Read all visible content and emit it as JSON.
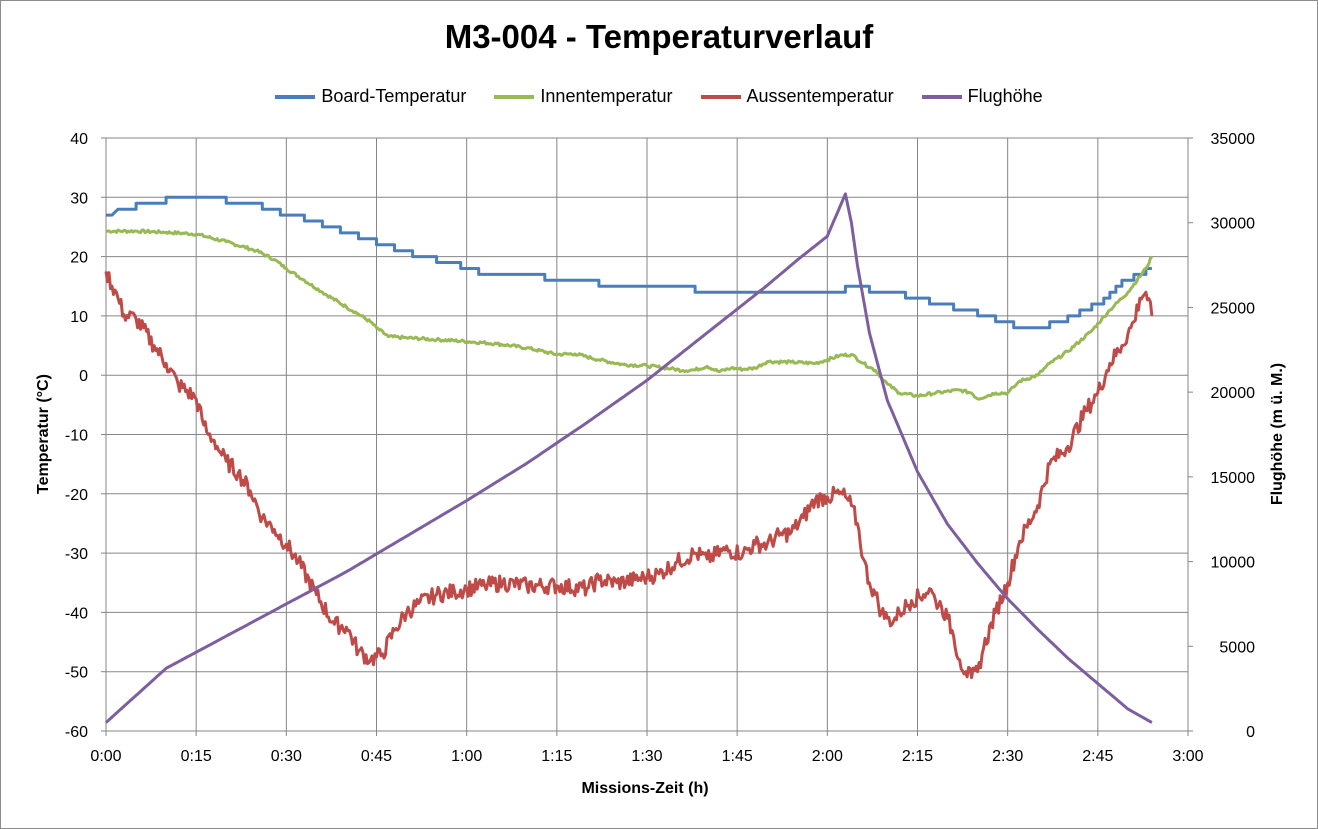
{
  "chart_data": {
    "type": "line",
    "title": "M3-004 - Temperaturverlauf",
    "xlabel": "Missions-Zeit (h)",
    "ylabel": "Temperatur (°C)",
    "y2label": "Flughöhe (m ü. M.)",
    "xlim": [
      0,
      180
    ],
    "ylim": [
      -60,
      40
    ],
    "y2lim": [
      0,
      35000
    ],
    "x_ticks": [
      "0:00",
      "0:15",
      "0:30",
      "0:45",
      "1:00",
      "1:15",
      "1:30",
      "1:45",
      "2:00",
      "2:15",
      "2:30",
      "2:45",
      "3:00"
    ],
    "y_ticks": [
      "40",
      "30",
      "20",
      "10",
      "0",
      "-10",
      "-20",
      "-30",
      "-40",
      "-50",
      "-60"
    ],
    "y2_ticks": [
      "35000",
      "30000",
      "25000",
      "20000",
      "15000",
      "10000",
      "5000",
      "0"
    ],
    "grid": true,
    "legend_position": "top",
    "x_unit_note": "minutes of mission time",
    "series": [
      {
        "name": "Board-Temperatur",
        "axis": "left",
        "color": "#4a7ebb",
        "step": true,
        "points": [
          [
            0,
            27
          ],
          [
            1,
            27
          ],
          [
            2,
            28
          ],
          [
            5,
            28
          ],
          [
            5,
            29
          ],
          [
            10,
            29
          ],
          [
            10,
            30
          ],
          [
            20,
            30
          ],
          [
            20,
            29
          ],
          [
            26,
            29
          ],
          [
            26,
            28
          ],
          [
            29,
            28
          ],
          [
            29,
            27
          ],
          [
            33,
            27
          ],
          [
            33,
            26
          ],
          [
            36,
            26
          ],
          [
            36,
            25
          ],
          [
            39,
            25
          ],
          [
            39,
            24
          ],
          [
            42,
            24
          ],
          [
            42,
            23
          ],
          [
            45,
            23
          ],
          [
            45,
            22
          ],
          [
            48,
            22
          ],
          [
            48,
            21
          ],
          [
            51,
            21
          ],
          [
            51,
            20
          ],
          [
            55,
            20
          ],
          [
            55,
            19
          ],
          [
            59,
            19
          ],
          [
            59,
            18
          ],
          [
            62,
            18
          ],
          [
            62,
            17
          ],
          [
            73,
            17
          ],
          [
            73,
            16
          ],
          [
            82,
            16
          ],
          [
            82,
            15
          ],
          [
            98,
            15
          ],
          [
            98,
            14
          ],
          [
            123,
            14
          ],
          [
            123,
            15
          ],
          [
            127,
            15
          ],
          [
            127,
            14
          ],
          [
            133,
            14
          ],
          [
            133,
            13
          ],
          [
            137,
            13
          ],
          [
            137,
            12
          ],
          [
            141,
            12
          ],
          [
            141,
            11
          ],
          [
            145,
            11
          ],
          [
            145,
            10
          ],
          [
            148,
            10
          ],
          [
            148,
            9
          ],
          [
            151,
            9
          ],
          [
            151,
            8
          ],
          [
            157,
            8
          ],
          [
            157,
            9
          ],
          [
            160,
            9
          ],
          [
            160,
            10
          ],
          [
            162,
            10
          ],
          [
            162,
            11
          ],
          [
            164,
            11
          ],
          [
            164,
            12
          ],
          [
            166,
            12
          ],
          [
            166,
            13
          ],
          [
            167,
            13
          ],
          [
            167,
            14
          ],
          [
            168,
            14
          ],
          [
            168,
            15
          ],
          [
            169,
            15
          ],
          [
            169,
            16
          ],
          [
            171,
            16
          ],
          [
            171,
            17
          ],
          [
            173,
            17
          ],
          [
            173,
            18
          ],
          [
            174,
            18
          ]
        ]
      },
      {
        "name": "Innentemperatur",
        "axis": "left",
        "color": "#98b954",
        "step": false,
        "points": [
          [
            0,
            24.3
          ],
          [
            5,
            24.3
          ],
          [
            10,
            24.1
          ],
          [
            15,
            23.8
          ],
          [
            20,
            22.5
          ],
          [
            25,
            21
          ],
          [
            28,
            19.5
          ],
          [
            30,
            18
          ],
          [
            33,
            16
          ],
          [
            36,
            14
          ],
          [
            40,
            11.5
          ],
          [
            42,
            10.3
          ],
          [
            44,
            9
          ],
          [
            45,
            8
          ],
          [
            47,
            6.5
          ],
          [
            50,
            6.3
          ],
          [
            55,
            6
          ],
          [
            60,
            5.7
          ],
          [
            65,
            5.3
          ],
          [
            70,
            4.6
          ],
          [
            75,
            3.5
          ],
          [
            78,
            3.6
          ],
          [
            82,
            2.6
          ],
          [
            86,
            1.8
          ],
          [
            90,
            1.6
          ],
          [
            94,
            1.1
          ],
          [
            96,
            0.8
          ],
          [
            98,
            0.9
          ],
          [
            100,
            1.5
          ],
          [
            102,
            0.6
          ],
          [
            104,
            1.2
          ],
          [
            106,
            1
          ],
          [
            108,
            1.2
          ],
          [
            110,
            2.3
          ],
          [
            114,
            2.2
          ],
          [
            118,
            2
          ],
          [
            120,
            2.6
          ],
          [
            122,
            3.3
          ],
          [
            124,
            3.5
          ],
          [
            126,
            2
          ],
          [
            128,
            0.8
          ],
          [
            130,
            -1.5
          ],
          [
            132,
            -3
          ],
          [
            135,
            -3.5
          ],
          [
            138,
            -3
          ],
          [
            142,
            -2.5
          ],
          [
            144,
            -3
          ],
          [
            145,
            -4
          ],
          [
            148,
            -3
          ],
          [
            150,
            -3
          ],
          [
            151,
            -2
          ],
          [
            152,
            -1
          ],
          [
            155,
            0
          ],
          [
            157,
            2
          ],
          [
            160,
            4
          ],
          [
            164,
            7.5
          ],
          [
            167,
            11
          ],
          [
            170,
            14
          ],
          [
            173,
            18
          ],
          [
            174,
            20
          ]
        ]
      },
      {
        "name": "Aussentemperatur",
        "axis": "left",
        "color": "#be4b48",
        "step": false,
        "points": [
          [
            0,
            17.5
          ],
          [
            2,
            13
          ],
          [
            3,
            10.2
          ],
          [
            5,
            9.5
          ],
          [
            8,
            5
          ],
          [
            10,
            2
          ],
          [
            12,
            -1.5
          ],
          [
            15,
            -4
          ],
          [
            16,
            -7.5
          ],
          [
            17,
            -10
          ],
          [
            18,
            -11
          ],
          [
            19,
            -13
          ],
          [
            20,
            -14.5
          ],
          [
            22,
            -16.5
          ],
          [
            24,
            -19.5
          ],
          [
            26,
            -24
          ],
          [
            28,
            -26
          ],
          [
            30,
            -28.5
          ],
          [
            32,
            -31.5
          ],
          [
            35,
            -37
          ],
          [
            38,
            -42
          ],
          [
            40,
            -42.5
          ],
          [
            42,
            -46.5
          ],
          [
            44,
            -48
          ],
          [
            46,
            -47
          ],
          [
            48,
            -43
          ],
          [
            50,
            -40
          ],
          [
            52,
            -38.5
          ],
          [
            55,
            -37
          ],
          [
            58,
            -36.5
          ],
          [
            60,
            -36
          ],
          [
            63,
            -35.5
          ],
          [
            66,
            -35
          ],
          [
            70,
            -35.5
          ],
          [
            75,
            -35.5
          ],
          [
            80,
            -36
          ],
          [
            82,
            -34.5
          ],
          [
            85,
            -35
          ],
          [
            88,
            -34.5
          ],
          [
            90,
            -34
          ],
          [
            92,
            -33.5
          ],
          [
            95,
            -31.5
          ],
          [
            98,
            -30
          ],
          [
            100,
            -31
          ],
          [
            103,
            -29.5
          ],
          [
            106,
            -30
          ],
          [
            108,
            -28.5
          ],
          [
            110,
            -28.5
          ],
          [
            112,
            -27
          ],
          [
            114,
            -26.5
          ],
          [
            116,
            -24
          ],
          [
            118,
            -21
          ],
          [
            120,
            -20.5
          ],
          [
            122,
            -20
          ],
          [
            123,
            -20.5
          ],
          [
            124,
            -22
          ],
          [
            125,
            -25
          ],
          [
            126,
            -31
          ],
          [
            127,
            -35
          ],
          [
            128,
            -37
          ],
          [
            129,
            -40
          ],
          [
            130,
            -41
          ],
          [
            131,
            -41.5
          ],
          [
            132,
            -40
          ],
          [
            134,
            -38
          ],
          [
            136,
            -37
          ],
          [
            137,
            -36
          ],
          [
            138,
            -38
          ],
          [
            139,
            -39
          ],
          [
            140,
            -41
          ],
          [
            141,
            -44
          ],
          [
            142,
            -48
          ],
          [
            143,
            -50
          ],
          [
            144,
            -51
          ],
          [
            145,
            -50
          ],
          [
            146,
            -46
          ],
          [
            148,
            -40
          ],
          [
            150,
            -35
          ],
          [
            152,
            -28
          ],
          [
            155,
            -22
          ],
          [
            157,
            -15
          ],
          [
            160,
            -12
          ],
          [
            163,
            -6
          ],
          [
            165,
            -3
          ],
          [
            167,
            2
          ],
          [
            169,
            5
          ],
          [
            171,
            9
          ],
          [
            172,
            13
          ],
          [
            173,
            14
          ],
          [
            174,
            10
          ]
        ]
      },
      {
        "name": "Flughöhe",
        "axis": "right",
        "color": "#7d5fa0",
        "step": false,
        "points": [
          [
            0,
            500
          ],
          [
            5,
            2100
          ],
          [
            10,
            3700
          ],
          [
            20,
            5600
          ],
          [
            30,
            7500
          ],
          [
            40,
            9400
          ],
          [
            50,
            11500
          ],
          [
            60,
            13600
          ],
          [
            70,
            15800
          ],
          [
            80,
            18200
          ],
          [
            90,
            20700
          ],
          [
            100,
            23500
          ],
          [
            110,
            26300
          ],
          [
            115,
            27800
          ],
          [
            120,
            29200
          ],
          [
            123,
            31700
          ],
          [
            124,
            30000
          ],
          [
            125,
            27500
          ],
          [
            127,
            23500
          ],
          [
            130,
            19500
          ],
          [
            135,
            15300
          ],
          [
            140,
            12200
          ],
          [
            145,
            9900
          ],
          [
            150,
            7800
          ],
          [
            155,
            6000
          ],
          [
            160,
            4300
          ],
          [
            165,
            2800
          ],
          [
            170,
            1300
          ],
          [
            174,
            500
          ]
        ]
      }
    ]
  }
}
